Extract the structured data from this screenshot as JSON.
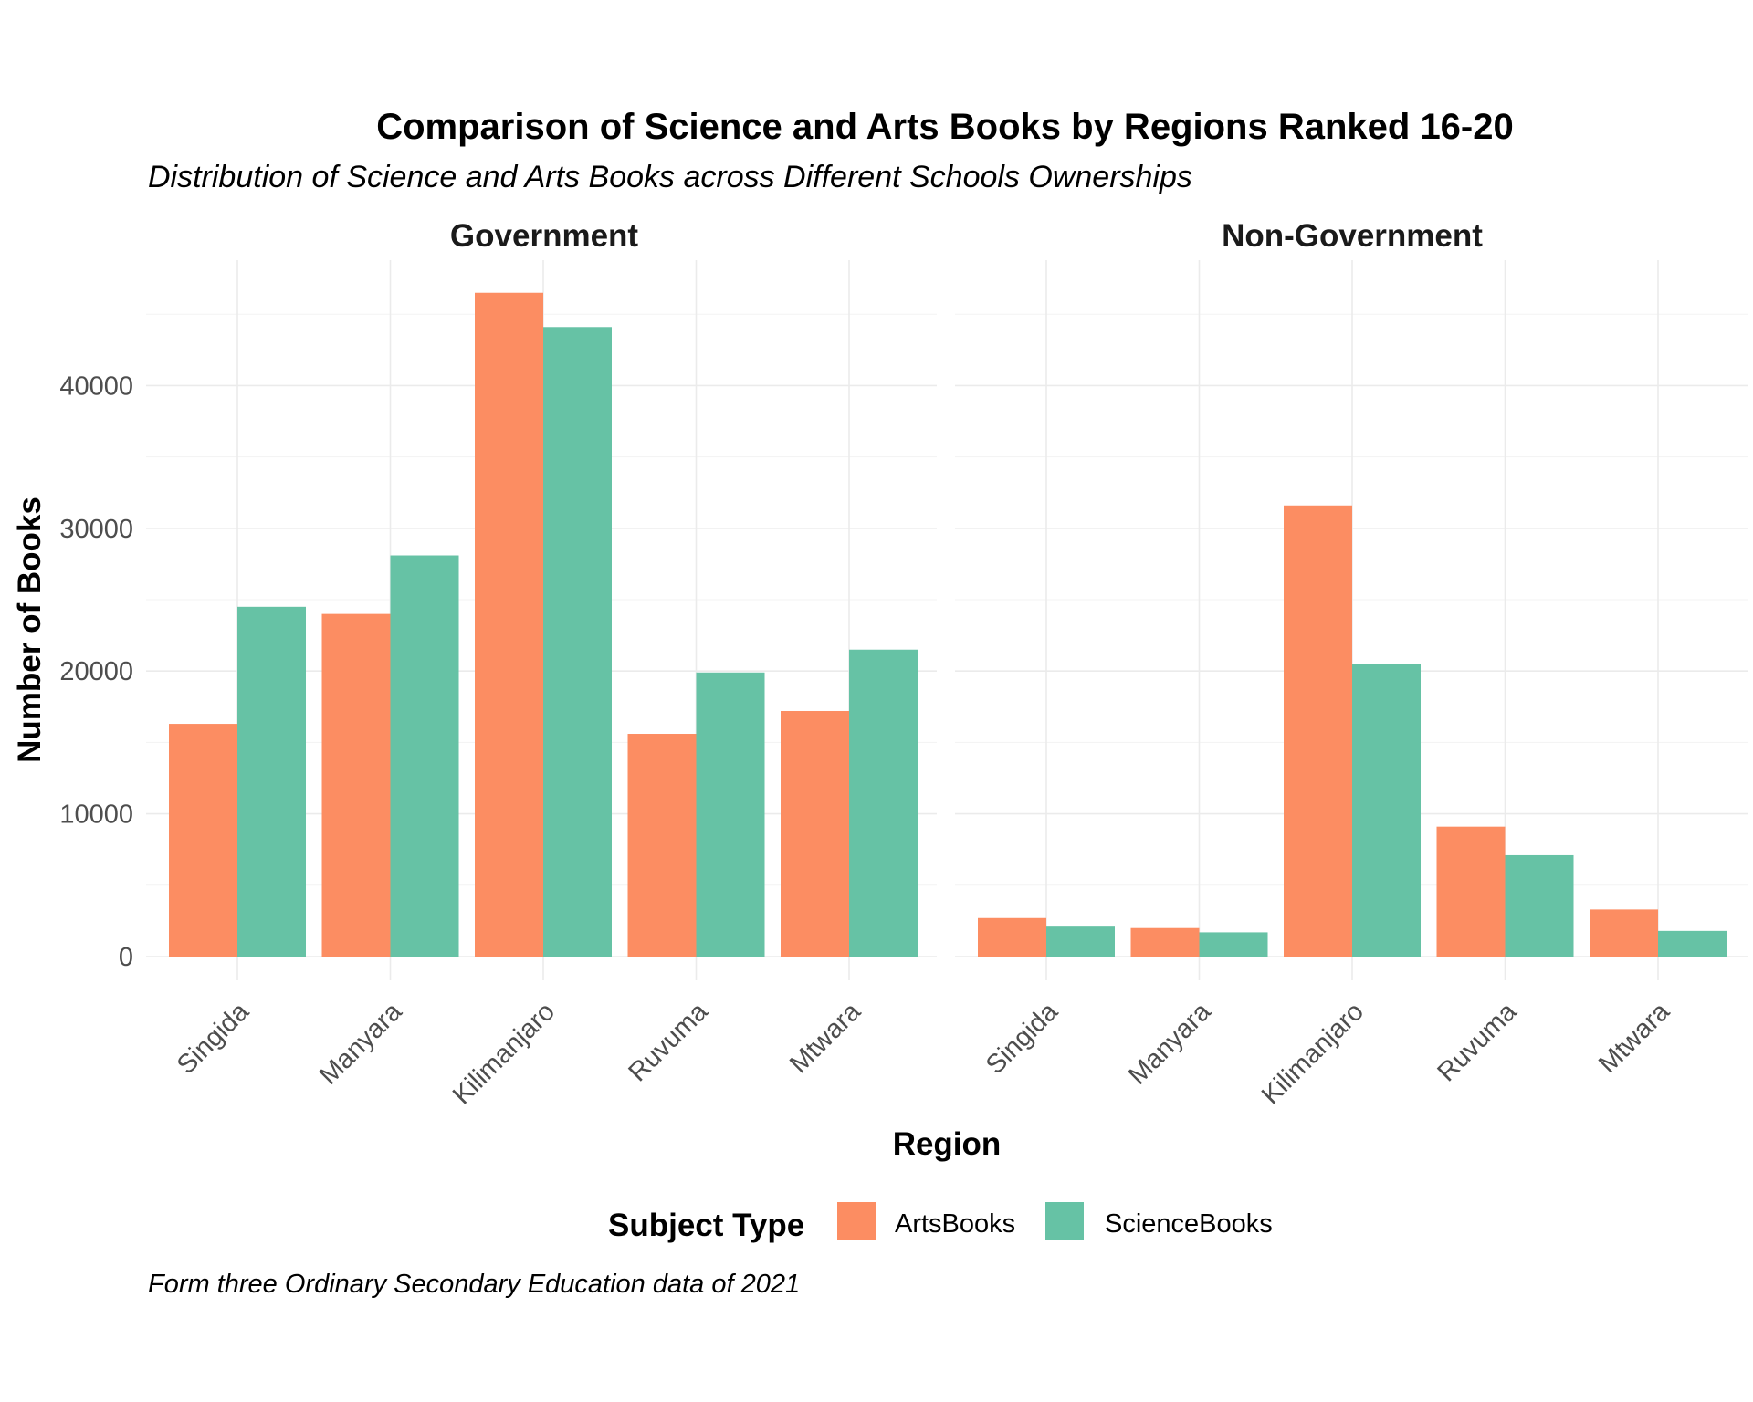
{
  "chart_data": {
    "type": "bar",
    "title": "Comparison of Science and Arts Books by Regions Ranked 16-20",
    "subtitle": "Distribution of Science and Arts Books across Different Schools Ownerships",
    "caption": "Form three Ordinary Secondary Education data of 2021",
    "xlabel": "Region",
    "ylabel": "Number of Books",
    "ylim": [
      0,
      48900
    ],
    "yticks": [
      0,
      10000,
      20000,
      30000,
      40000
    ],
    "grid": true,
    "categories": [
      "Singida",
      "Manyara",
      "Kilimanjaro",
      "Ruvuma",
      "Mtwara"
    ],
    "legend": {
      "title": "Subject Type",
      "position": "bottom",
      "items": [
        {
          "name": "ArtsBooks",
          "color": "#FC8D62"
        },
        {
          "name": "ScienceBooks",
          "color": "#66C2A5"
        }
      ]
    },
    "facets": [
      {
        "name": "Government",
        "series": [
          {
            "name": "ArtsBooks",
            "values": [
              16300,
              24000,
              46500,
              15600,
              17200
            ]
          },
          {
            "name": "ScienceBooks",
            "values": [
              24500,
              28100,
              44100,
              19900,
              21500
            ]
          }
        ]
      },
      {
        "name": "Non-Government",
        "series": [
          {
            "name": "ArtsBooks",
            "values": [
              2700,
              2000,
              31600,
              9100,
              3300
            ]
          },
          {
            "name": "ScienceBooks",
            "values": [
              2100,
              1700,
              20500,
              7100,
              1800
            ]
          }
        ]
      }
    ]
  }
}
